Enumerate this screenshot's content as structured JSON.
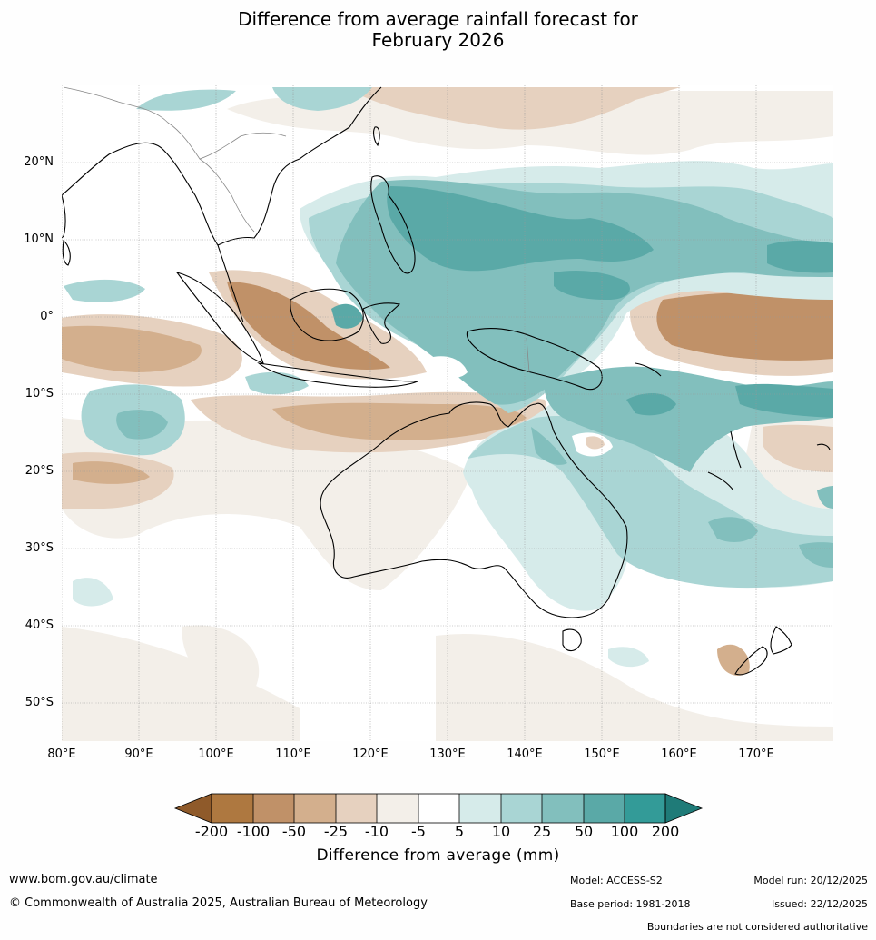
{
  "title_line1": "Difference from average rainfall forecast for",
  "title_line2": "February 2026",
  "map": {
    "lat_labels": [
      "20°N",
      "10°N",
      "0°",
      "10°S",
      "20°S",
      "30°S",
      "40°S",
      "50°S"
    ],
    "lon_labels": [
      "80°E",
      "90°E",
      "100°E",
      "110°E",
      "120°E",
      "130°E",
      "140°E",
      "150°E",
      "160°E",
      "170°E"
    ]
  },
  "colorbar": {
    "title": "Difference from average (mm)",
    "ticks": [
      "-200",
      "-100",
      "-50",
      "-25",
      "-10",
      "-5",
      "5",
      "10",
      "25",
      "50",
      "100",
      "200"
    ],
    "colors": [
      "#8f5a2a",
      "#ae7840",
      "#c09168",
      "#d3af8d",
      "#e6d1bf",
      "#f3efe9",
      "#ffffff",
      "#d6ebea",
      "#a9d5d4",
      "#82bfbd",
      "#5aa9a7",
      "#339b98",
      "#1f7b78"
    ]
  },
  "footer": {
    "url": "www.bom.gov.au/climate",
    "copyright": "© Commonwealth of Australia 2025, Australian Bureau of Meteorology",
    "model": "Model: ACCESS-S2",
    "model_run": "Model run: 20/12/2025",
    "base_period": "Base period: 1981-2018",
    "issued": "Issued: 22/12/2025",
    "boundaries": "Boundaries are not considered authoritative"
  }
}
